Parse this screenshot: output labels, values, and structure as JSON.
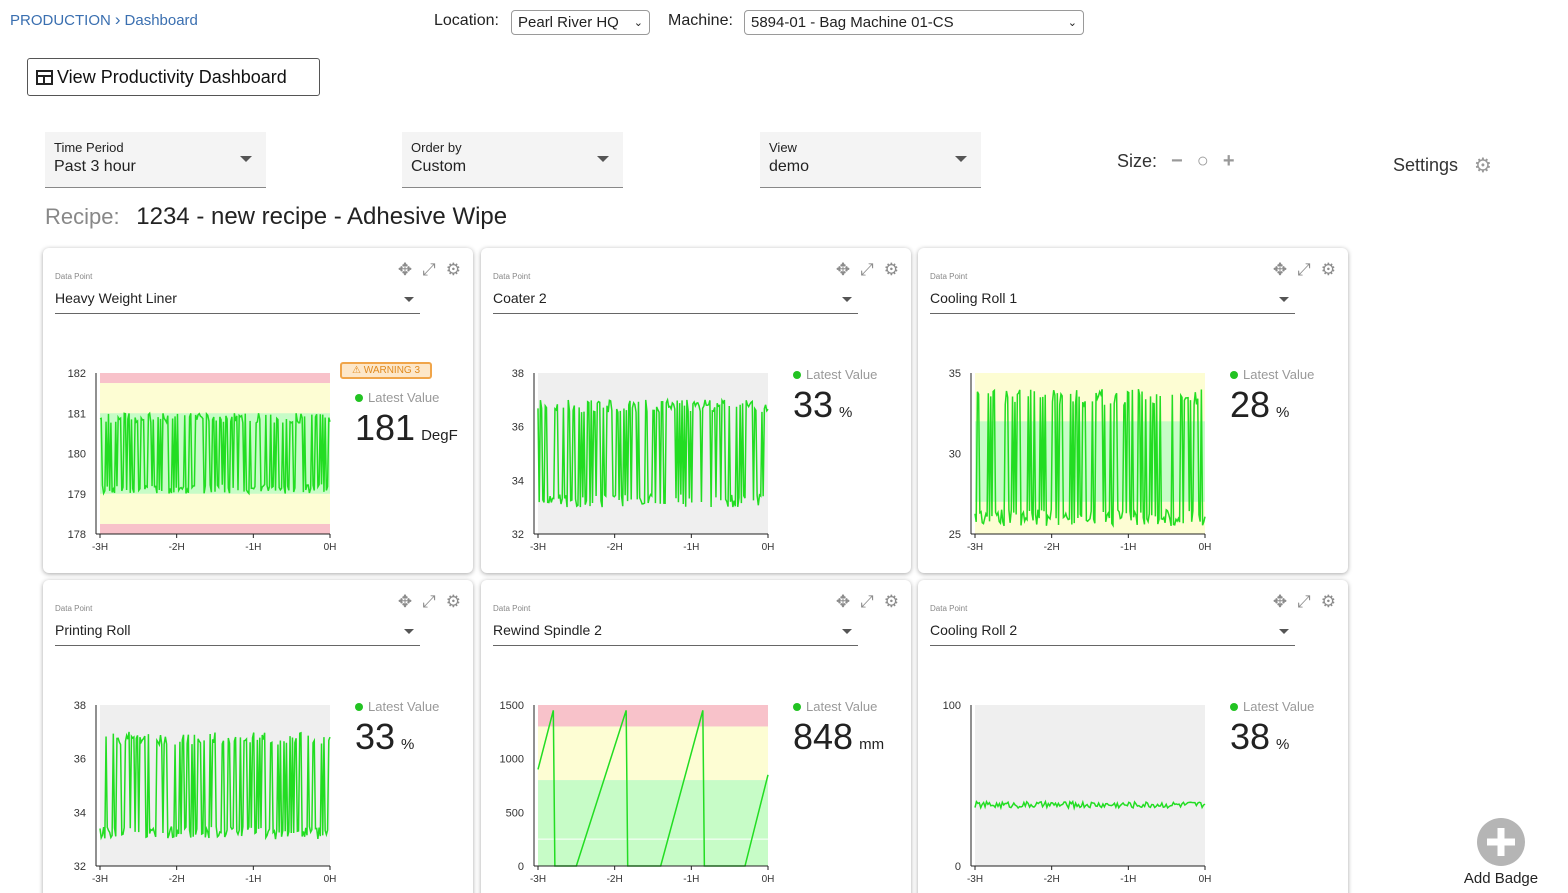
{
  "breadcrumb": {
    "root": "PRODUCTION",
    "current": "Dashboard"
  },
  "header": {
    "location_label": "Location:",
    "location_value": "Pearl River HQ",
    "machine_label": "Machine:",
    "machine_value": "5894-01 - Bag Machine 01-CS"
  },
  "productivity_button": "View Productivity Dashboard",
  "filters": [
    {
      "label": "Time Period",
      "value": "Past 3 hour"
    },
    {
      "label": "Order by",
      "value": "Custom"
    },
    {
      "label": "View",
      "value": "demo"
    }
  ],
  "size_label": "Size:",
  "settings_label": "Settings",
  "recipe": {
    "label": "Recipe:",
    "value": "1234 - new recipe - Adhesive Wipe"
  },
  "add_badge_label": "Add Badge",
  "colors": {
    "line": "#22dd22",
    "danger_band": "#f8c2ca",
    "warning_band": "#fdfdd3",
    "normal_band": "#c7fcc7",
    "plot_bg": "#efefef",
    "accent": "#3a6fb0"
  },
  "cards": [
    {
      "dp_label": "Data Point",
      "name": "Heavy Weight Liner",
      "latest_title": "Latest Value",
      "latest_value": "181",
      "unit": "DegF",
      "warning": "WARNING 3"
    },
    {
      "dp_label": "Data Point",
      "name": "Coater 2",
      "latest_title": "Latest Value",
      "latest_value": "33",
      "unit": "%"
    },
    {
      "dp_label": "Data Point",
      "name": "Cooling Roll 1",
      "latest_title": "Latest Value",
      "latest_value": "28",
      "unit": "%"
    },
    {
      "dp_label": "Data Point",
      "name": "Printing Roll",
      "latest_title": "Latest Value",
      "latest_value": "33",
      "unit": "%"
    },
    {
      "dp_label": "Data Point",
      "name": "Rewind Spindle 2",
      "latest_title": "Latest Value",
      "latest_value": "848",
      "unit": "mm"
    },
    {
      "dp_label": "Data Point",
      "name": "Cooling Roll 2",
      "latest_title": "Latest Value",
      "latest_value": "38",
      "unit": "%"
    }
  ],
  "chart_data": [
    {
      "type": "line",
      "title": "Heavy Weight Liner",
      "x_ticks": [
        "-3H",
        "-2H",
        "-1H",
        "0H"
      ],
      "y_ticks": [
        178,
        179,
        180,
        181,
        182
      ],
      "ylim": [
        178,
        182
      ],
      "bands": [
        {
          "from": 181.75,
          "to": 182,
          "kind": "danger"
        },
        {
          "from": 178,
          "to": 178.25,
          "kind": "danger"
        },
        {
          "from": 178.25,
          "to": 181.75,
          "kind": "warning"
        },
        {
          "from": 179,
          "to": 181,
          "kind": "normal"
        }
      ],
      "series": [
        {
          "pattern": "oscillating",
          "low": 179,
          "high": 181
        }
      ]
    },
    {
      "type": "line",
      "title": "Coater 2",
      "x_ticks": [
        "-3H",
        "-2H",
        "-1H",
        "0H"
      ],
      "y_ticks": [
        32,
        34,
        36,
        38
      ],
      "ylim": [
        32,
        38
      ],
      "bands": [],
      "series": [
        {
          "pattern": "oscillating",
          "low": 33,
          "high": 37
        }
      ]
    },
    {
      "type": "line",
      "title": "Cooling Roll 1",
      "x_ticks": [
        "-3H",
        "-2H",
        "-1H",
        "0H"
      ],
      "y_ticks": [
        25,
        30,
        35
      ],
      "ylim": [
        25,
        35
      ],
      "bands": [
        {
          "from": 25,
          "to": 35,
          "kind": "warning"
        },
        {
          "from": 27,
          "to": 32,
          "kind": "normal"
        }
      ],
      "series": [
        {
          "pattern": "oscillating",
          "low": 25.5,
          "high": 34
        }
      ]
    },
    {
      "type": "line",
      "title": "Printing Roll",
      "x_ticks": [
        "-3H",
        "-2H",
        "-1H",
        "0H"
      ],
      "y_ticks": [
        32,
        34,
        36,
        38
      ],
      "ylim": [
        32,
        38
      ],
      "bands": [],
      "series": [
        {
          "pattern": "oscillating",
          "low": 33,
          "high": 37
        }
      ]
    },
    {
      "type": "line",
      "title": "Rewind Spindle 2",
      "x_ticks": [
        "-3H",
        "-2H",
        "-1H",
        "0H"
      ],
      "y_ticks": [
        0,
        500,
        1000,
        1500
      ],
      "ylim": [
        0,
        1500
      ],
      "bands": [
        {
          "from": 1300,
          "to": 1500,
          "kind": "danger"
        },
        {
          "from": 800,
          "to": 1300,
          "kind": "warning"
        },
        {
          "from": 0,
          "to": 800,
          "kind": "normal"
        }
      ],
      "series": [
        {
          "pattern": "sawtooth",
          "points": [
            [
              -3,
              900
            ],
            [
              -2.8,
              1450
            ],
            [
              -2.78,
              0
            ],
            [
              -2.5,
              0
            ],
            [
              -1.85,
              1450
            ],
            [
              -1.83,
              0
            ],
            [
              -1.4,
              0
            ],
            [
              -0.85,
              1450
            ],
            [
              -0.83,
              0
            ],
            [
              -0.3,
              0
            ],
            [
              0,
              850
            ]
          ]
        }
      ]
    },
    {
      "type": "line",
      "title": "Cooling Roll 2",
      "x_ticks": [
        "-3H",
        "-2H",
        "-1H",
        "0H"
      ],
      "y_ticks": [
        0,
        100
      ],
      "ylim": [
        0,
        100
      ],
      "bands": [],
      "series": [
        {
          "pattern": "noise",
          "low": 36,
          "high": 40
        }
      ]
    }
  ]
}
